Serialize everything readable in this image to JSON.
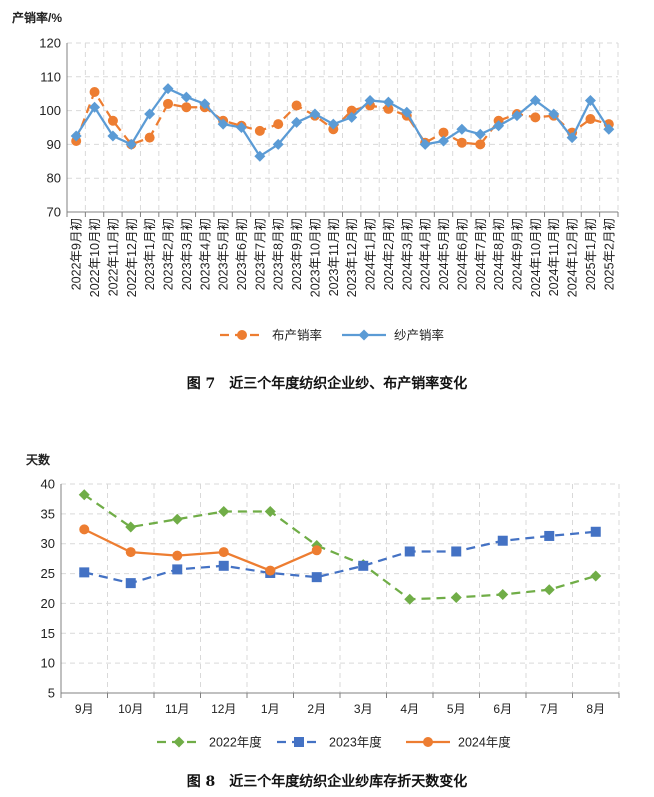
{
  "colors": {
    "orange": "#ED7D31",
    "blue": "#5B9BD5",
    "green": "#70AD47",
    "blue2": "#4472C4",
    "grid": "#D9D9D9",
    "axis": "#808080"
  },
  "chart_data": [
    {
      "type": "line",
      "ylabel": "产销率/%",
      "xlabel": "",
      "title": "",
      "ylim": [
        70,
        120
      ],
      "yticks": [
        70,
        80,
        90,
        100,
        110,
        120
      ],
      "grid": true,
      "legend_position": "bottom",
      "categories": [
        "2022年9月初",
        "2022年10月初",
        "2022年11月初",
        "2022年12月初",
        "2023年1月初",
        "2023年2月初",
        "2023年3月初",
        "2023年4月初",
        "2023年5月初",
        "2023年6月初",
        "2023年7月初",
        "2023年8月初",
        "2023年9月初",
        "2023年10月初",
        "2023年11月初",
        "2023年12月初",
        "2024年1月初",
        "2024年2月初",
        "2024年3月初",
        "2024年4月初",
        "2024年5月初",
        "2024年6月初",
        "2024年7月初",
        "2024年8月初",
        "2024年9月初",
        "2024年10月初",
        "2024年11月初",
        "2024年12月初",
        "2025年1月初",
        "2025年2月初"
      ],
      "series": [
        {
          "name": "布产销率",
          "style": "dashed-circle",
          "color": "#ED7D31",
          "values": [
            91,
            105.5,
            97,
            90,
            92,
            102,
            101,
            101,
            97,
            95.5,
            94,
            96,
            101.5,
            98.5,
            94.5,
            100,
            101.5,
            100.5,
            98.5,
            90.5,
            93.5,
            90.5,
            90,
            97,
            99,
            98,
            98.5,
            93.5,
            97.5,
            96
          ]
        },
        {
          "name": "纱产销率",
          "style": "solid-diamond",
          "color": "#5B9BD5",
          "values": [
            92.5,
            101,
            92.5,
            90,
            99,
            106.5,
            104,
            102,
            96,
            95,
            86.5,
            90,
            96.5,
            99,
            96,
            98,
            103,
            102.5,
            99.5,
            90,
            91,
            94.5,
            93,
            95.5,
            98.5,
            103,
            99,
            92,
            103,
            94.5
          ]
        }
      ],
      "caption": "图 7　近三个年度纺织企业纱、布产销率变化"
    },
    {
      "type": "line",
      "ylabel": "天数",
      "xlabel": "",
      "title": "",
      "ylim": [
        5,
        40
      ],
      "yticks": [
        5,
        10,
        15,
        20,
        25,
        30,
        35,
        40
      ],
      "grid": true,
      "legend_position": "bottom",
      "categories": [
        "9月",
        "10月",
        "11月",
        "12月",
        "1月",
        "2月",
        "3月",
        "4月",
        "5月",
        "6月",
        "7月",
        "8月"
      ],
      "series": [
        {
          "name": "2022年度",
          "style": "dashed-diamond",
          "color": "#70AD47",
          "values": [
            38.2,
            32.8,
            34.1,
            35.4,
            35.4,
            29.7,
            26.5,
            20.7,
            21.0,
            21.5,
            22.3,
            24.6
          ]
        },
        {
          "name": "2023年度",
          "style": "dashed-square",
          "color": "#4472C4",
          "values": [
            25.2,
            23.4,
            25.7,
            26.3,
            25.1,
            24.4,
            26.3,
            28.7,
            28.7,
            30.5,
            31.3,
            32.0
          ]
        },
        {
          "name": "2024年度",
          "style": "solid-circle",
          "color": "#ED7D31",
          "values": [
            32.4,
            28.6,
            28.0,
            28.6,
            25.5,
            28.9,
            null,
            null,
            null,
            null,
            null,
            null
          ]
        }
      ],
      "caption": "图 8　近三个年度纺织企业纱库存折天数变化"
    }
  ]
}
